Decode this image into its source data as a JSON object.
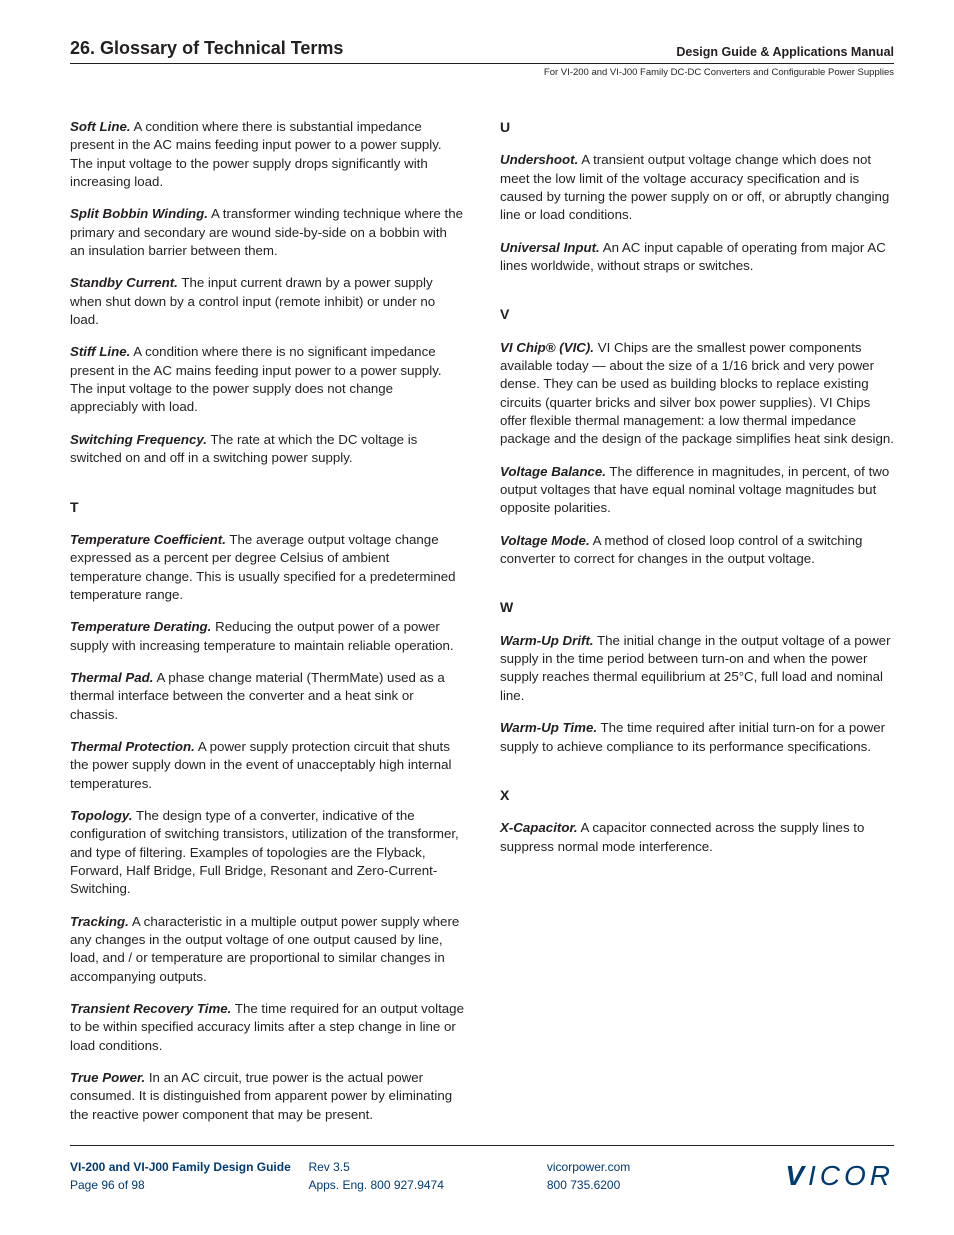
{
  "header": {
    "title": "26. Glossary of Technical Terms",
    "subtitle1": "Design Guide & Applications Manual",
    "subtitle2": "For VI-200 and VI-J00 Family DC-DC Converters and Configurable Power Supplies"
  },
  "left_column": {
    "entries": [
      {
        "term": "Soft Line.",
        "def": " A condition where there is substantial impedance present in the AC mains feeding input power to a power supply. The input voltage to the power supply drops significantly with increasing load."
      },
      {
        "term": "Split Bobbin Winding.",
        "def": " A transformer winding technique where the primary and secondary are wound side-by-side on a bobbin with an insulation barrier between them."
      },
      {
        "term": "Standby Current.",
        "def": " The input current drawn by a power supply when shut down by a control input (remote inhibit) or under no load."
      },
      {
        "term": "Stiff Line.",
        "def": " A condition where there is no significant impedance present in the AC mains feeding input power to a power supply. The input voltage to the power supply does not change appreciably with load."
      },
      {
        "term": "Switching Frequency.",
        "def": " The rate at which the DC voltage is switched on and off in a switching power supply."
      }
    ],
    "section_t": "T",
    "entries_t": [
      {
        "term": "Temperature Coefficient.",
        "def": " The average output voltage change expressed as a percent per degree Celsius of ambient temperature change. This is usually specified for a predetermined temperature range."
      },
      {
        "term": "Temperature Derating.",
        "def": " Reducing the output power of a power supply with increasing temperature to maintain reliable operation."
      },
      {
        "term": "Thermal Pad.",
        "def": " A phase change material (ThermMate) used as a thermal interface between the converter and a heat sink or chassis."
      },
      {
        "term": "Thermal Protection.",
        "def": " A power supply protection circuit that shuts the power supply down in the event of unacceptably high internal temperatures."
      },
      {
        "term": "Topology.",
        "def": " The design type of a converter, indicative of the configuration of switching transistors, utilization of the transformer, and type of filtering. Examples of topologies are the Flyback, Forward, Half Bridge, Full Bridge, Resonant and Zero-Current-Switching."
      },
      {
        "term": "Tracking.",
        "def": " A characteristic in a multiple output power supply where any changes in the output voltage of one output caused by line, load, and / or temperature are proportional to similar changes in accompanying outputs."
      },
      {
        "term": "Transient Recovery Time.",
        "def": " The time required for an output voltage to be within specified accuracy limits after a step change in line or load conditions."
      },
      {
        "term": "True Power.",
        "def": " In an AC circuit, true power is the actual power consumed. It is distinguished from apparent power by eliminating the reactive power component that may be present."
      }
    ]
  },
  "right_column": {
    "section_u": "U",
    "entries_u": [
      {
        "term": "Undershoot.",
        "def": " A transient output voltage change which does not meet the low limit of the voltage accuracy specification and is caused by turning the power supply on or off, or abruptly changing line or load conditions."
      },
      {
        "term": "Universal Input.",
        "def": " An AC input capable of operating from major AC lines worldwide, without straps or switches."
      }
    ],
    "section_v": "V",
    "entries_v": [
      {
        "term": "VI Chip® (VIC).",
        "def": " VI Chips are the smallest power components available today — about the size of a 1/16 brick and very power dense. They can be used as building blocks to replace existing circuits (quarter bricks and silver box power supplies). VI Chips offer flexible thermal management: a low thermal impedance package and the design of the package simplifies heat sink design."
      },
      {
        "term": "Voltage Balance.",
        "def": " The difference in magnitudes, in percent, of two output voltages that have equal nominal voltage magnitudes but opposite polarities."
      },
      {
        "term": "Voltage Mode.",
        "def": " A method of closed loop control of a switching converter to correct for changes in the output voltage."
      }
    ],
    "section_w": "W",
    "entries_w": [
      {
        "term": "Warm-Up Drift.",
        "def": " The initial change in the output voltage of a power supply in the time period between turn-on and when the power supply reaches thermal equilibrium at 25°C, full load and nominal line."
      },
      {
        "term": "Warm-Up Time.",
        "def": " The time required after initial turn-on for a power supply to achieve compliance to its performance specifications."
      }
    ],
    "section_x": "X",
    "entries_x": [
      {
        "term": "X-Capacitor.",
        "def": " A capacitor connected across the supply lines to suppress normal mode interference."
      }
    ]
  },
  "footer": {
    "col1_line1": "VI-200 and VI-J00 Family Design Guide",
    "col1_line2": "Page 96 of 98",
    "col2_line1": "Rev 3.5",
    "col2_line2": "Apps. Eng. 800 927.9474",
    "col3_line1": "vicorpower.com",
    "col3_line2": "800 735.6200",
    "logo": "VICOR"
  }
}
